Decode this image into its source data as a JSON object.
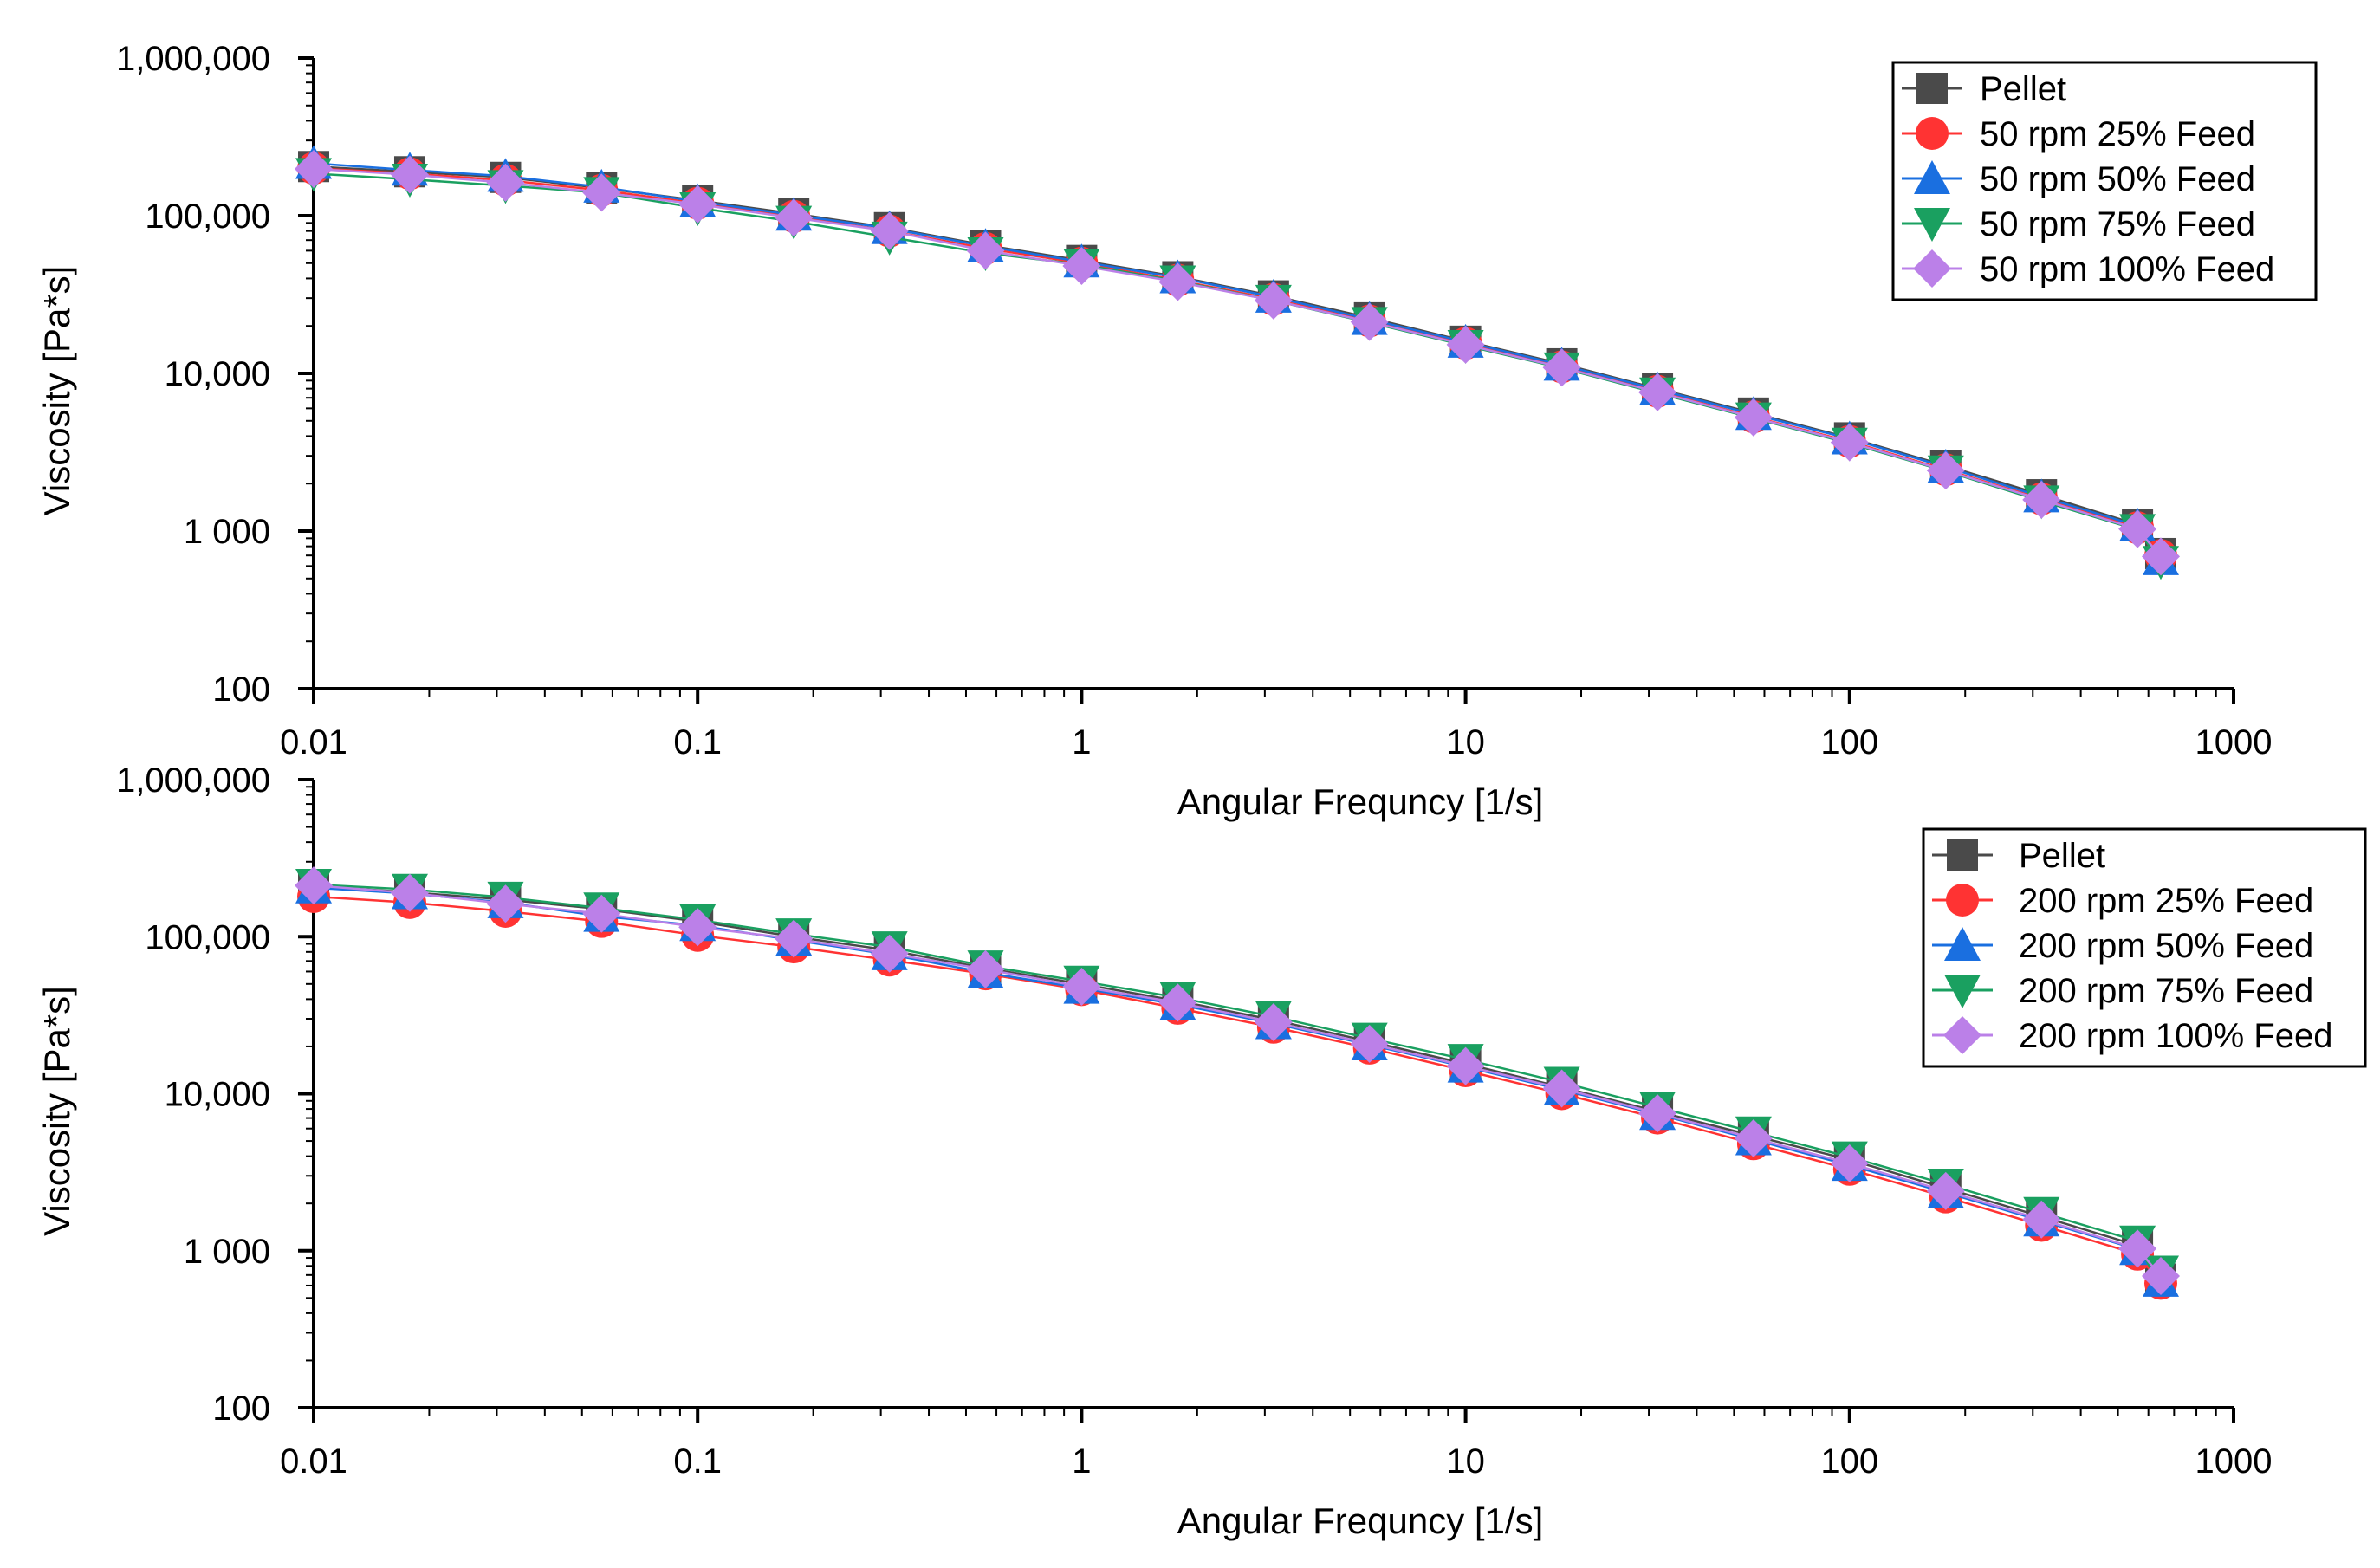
{
  "chart_data": [
    {
      "type": "line",
      "title": "",
      "xlabel": "Angular Frequncy [1/s]",
      "ylabel": "Viscosity [Pa*s]",
      "xscale": "log",
      "yscale": "log",
      "xlim": [
        0.01,
        1000
      ],
      "ylim": [
        100,
        1000000
      ],
      "xticks": [
        0.01,
        0.1,
        1,
        10,
        100,
        1000
      ],
      "xtick_labels": [
        "0.01",
        "0.1",
        "1",
        "10",
        "100",
        "1000"
      ],
      "yticks": [
        100,
        1000,
        10000,
        100000,
        1000000
      ],
      "ytick_labels": [
        "100",
        "1 000",
        "10,000",
        "100,000",
        "1,000,000"
      ],
      "legend_position": "top-right",
      "x": [
        0.01,
        0.0178,
        0.0316,
        0.0562,
        0.1,
        0.178,
        0.316,
        0.562,
        1,
        1.78,
        3.16,
        5.62,
        10,
        17.8,
        31.6,
        56.2,
        100,
        178,
        316,
        562
      ],
      "series": [
        {
          "name": "Pellet",
          "color": "#4a4a4a",
          "marker": "square",
          "values": [
            205000,
            190000,
            175000,
            150000,
            125000,
            103000,
            84000,
            65000,
            52000,
            41000,
            31000,
            22500,
            16000,
            11500,
            8000,
            5600,
            3900,
            2600,
            1700,
            1100
          ]
        },
        {
          "name": "50 rpm 25% Feed",
          "color": "#ff3333",
          "marker": "circle",
          "values": [
            200000,
            185000,
            168000,
            145000,
            120000,
            99000,
            80000,
            62000,
            50000,
            39000,
            29500,
            21500,
            15500,
            11000,
            7700,
            5300,
            3700,
            2450,
            1600,
            1050
          ]
        },
        {
          "name": "50 rpm 50% Feed",
          "color": "#1a6fe0",
          "marker": "triangle-up",
          "values": [
            215000,
            195000,
            178000,
            152000,
            123000,
            101000,
            83000,
            64000,
            51000,
            40500,
            30500,
            22000,
            15800,
            11300,
            7900,
            5500,
            3850,
            2550,
            1650,
            1080
          ]
        },
        {
          "name": "50 rpm 75% Feed",
          "color": "#1aa060",
          "marker": "triangle-down",
          "values": [
            185000,
            170000,
            155000,
            140000,
            112000,
            92000,
            73000,
            58000,
            49000,
            38500,
            29000,
            21000,
            15000,
            10800,
            7500,
            5200,
            3600,
            2400,
            1550,
            1020
          ]
        },
        {
          "name": "50 rpm 100% Feed",
          "color": "#bb80e8",
          "marker": "diamond",
          "values": [
            198000,
            182000,
            162000,
            140000,
            118000,
            97000,
            80000,
            60000,
            48000,
            38000,
            29000,
            21200,
            15200,
            10900,
            7600,
            5250,
            3650,
            2420,
            1580,
            1030
          ]
        }
      ],
      "series_end": [
        720,
        700,
        660,
        640,
        690
      ]
    },
    {
      "type": "line",
      "title": "",
      "xlabel": "Angular Frequncy [1/s]",
      "ylabel": "Viscosity [Pa*s]",
      "xscale": "log",
      "yscale": "log",
      "xlim": [
        0.01,
        1000
      ],
      "ylim": [
        100,
        1000000
      ],
      "xticks": [
        0.01,
        0.1,
        1,
        10,
        100,
        1000
      ],
      "xtick_labels": [
        "0.01",
        "0.1",
        "1",
        "10",
        "100",
        "1000"
      ],
      "yticks": [
        100,
        1000,
        10000,
        100000,
        1000000
      ],
      "ytick_labels": [
        "100",
        "1 000",
        "10,000",
        "100,000",
        "1,000,000"
      ],
      "legend_position": "top-right",
      "x": [
        0.01,
        0.0178,
        0.0316,
        0.0562,
        0.1,
        0.178,
        0.316,
        0.562,
        1,
        1.78,
        3.16,
        5.62,
        10,
        17.8,
        31.6,
        56.2,
        100,
        178,
        316,
        562
      ],
      "series": [
        {
          "name": "Pellet",
          "color": "#4a4a4a",
          "marker": "square",
          "values": [
            210000,
            192000,
            172000,
            150000,
            125000,
            100000,
            82000,
            63000,
            50000,
            39000,
            29500,
            21500,
            15500,
            11000,
            7700,
            5400,
            3800,
            2500,
            1650,
            1080
          ]
        },
        {
          "name": "200 rpm 25% Feed",
          "color": "#ff3333",
          "marker": "circle",
          "values": [
            180000,
            165000,
            145000,
            125000,
            102000,
            86000,
            71000,
            58000,
            46000,
            35000,
            26500,
            19500,
            14000,
            10000,
            7000,
            4800,
            3300,
            2200,
            1450,
            950
          ]
        },
        {
          "name": "200 rpm 50% Feed",
          "color": "#1a6fe0",
          "marker": "triangle-up",
          "values": [
            205000,
            188000,
            165000,
            135000,
            118000,
            95000,
            77000,
            59000,
            47000,
            37000,
            28000,
            20500,
            14800,
            10600,
            7400,
            5100,
            3500,
            2350,
            1550,
            1020
          ]
        },
        {
          "name": "200 rpm 75% Feed",
          "color": "#1aa060",
          "marker": "triangle-down",
          "values": [
            215000,
            200000,
            178000,
            152000,
            128000,
            104000,
            86000,
            65000,
            52000,
            41000,
            31000,
            22500,
            16500,
            11800,
            8200,
            5700,
            3950,
            2650,
            1750,
            1150
          ]
        },
        {
          "name": "200 rpm 100% Feed",
          "color": "#bb80e8",
          "marker": "diamond",
          "values": [
            212000,
            190000,
            162000,
            140000,
            115000,
            97000,
            78000,
            62000,
            48000,
            38000,
            28500,
            20800,
            15000,
            10800,
            7500,
            5200,
            3600,
            2400,
            1580,
            1030
          ]
        }
      ],
      "series_end": [
        660,
        620,
        640,
        740,
        690
      ]
    }
  ]
}
